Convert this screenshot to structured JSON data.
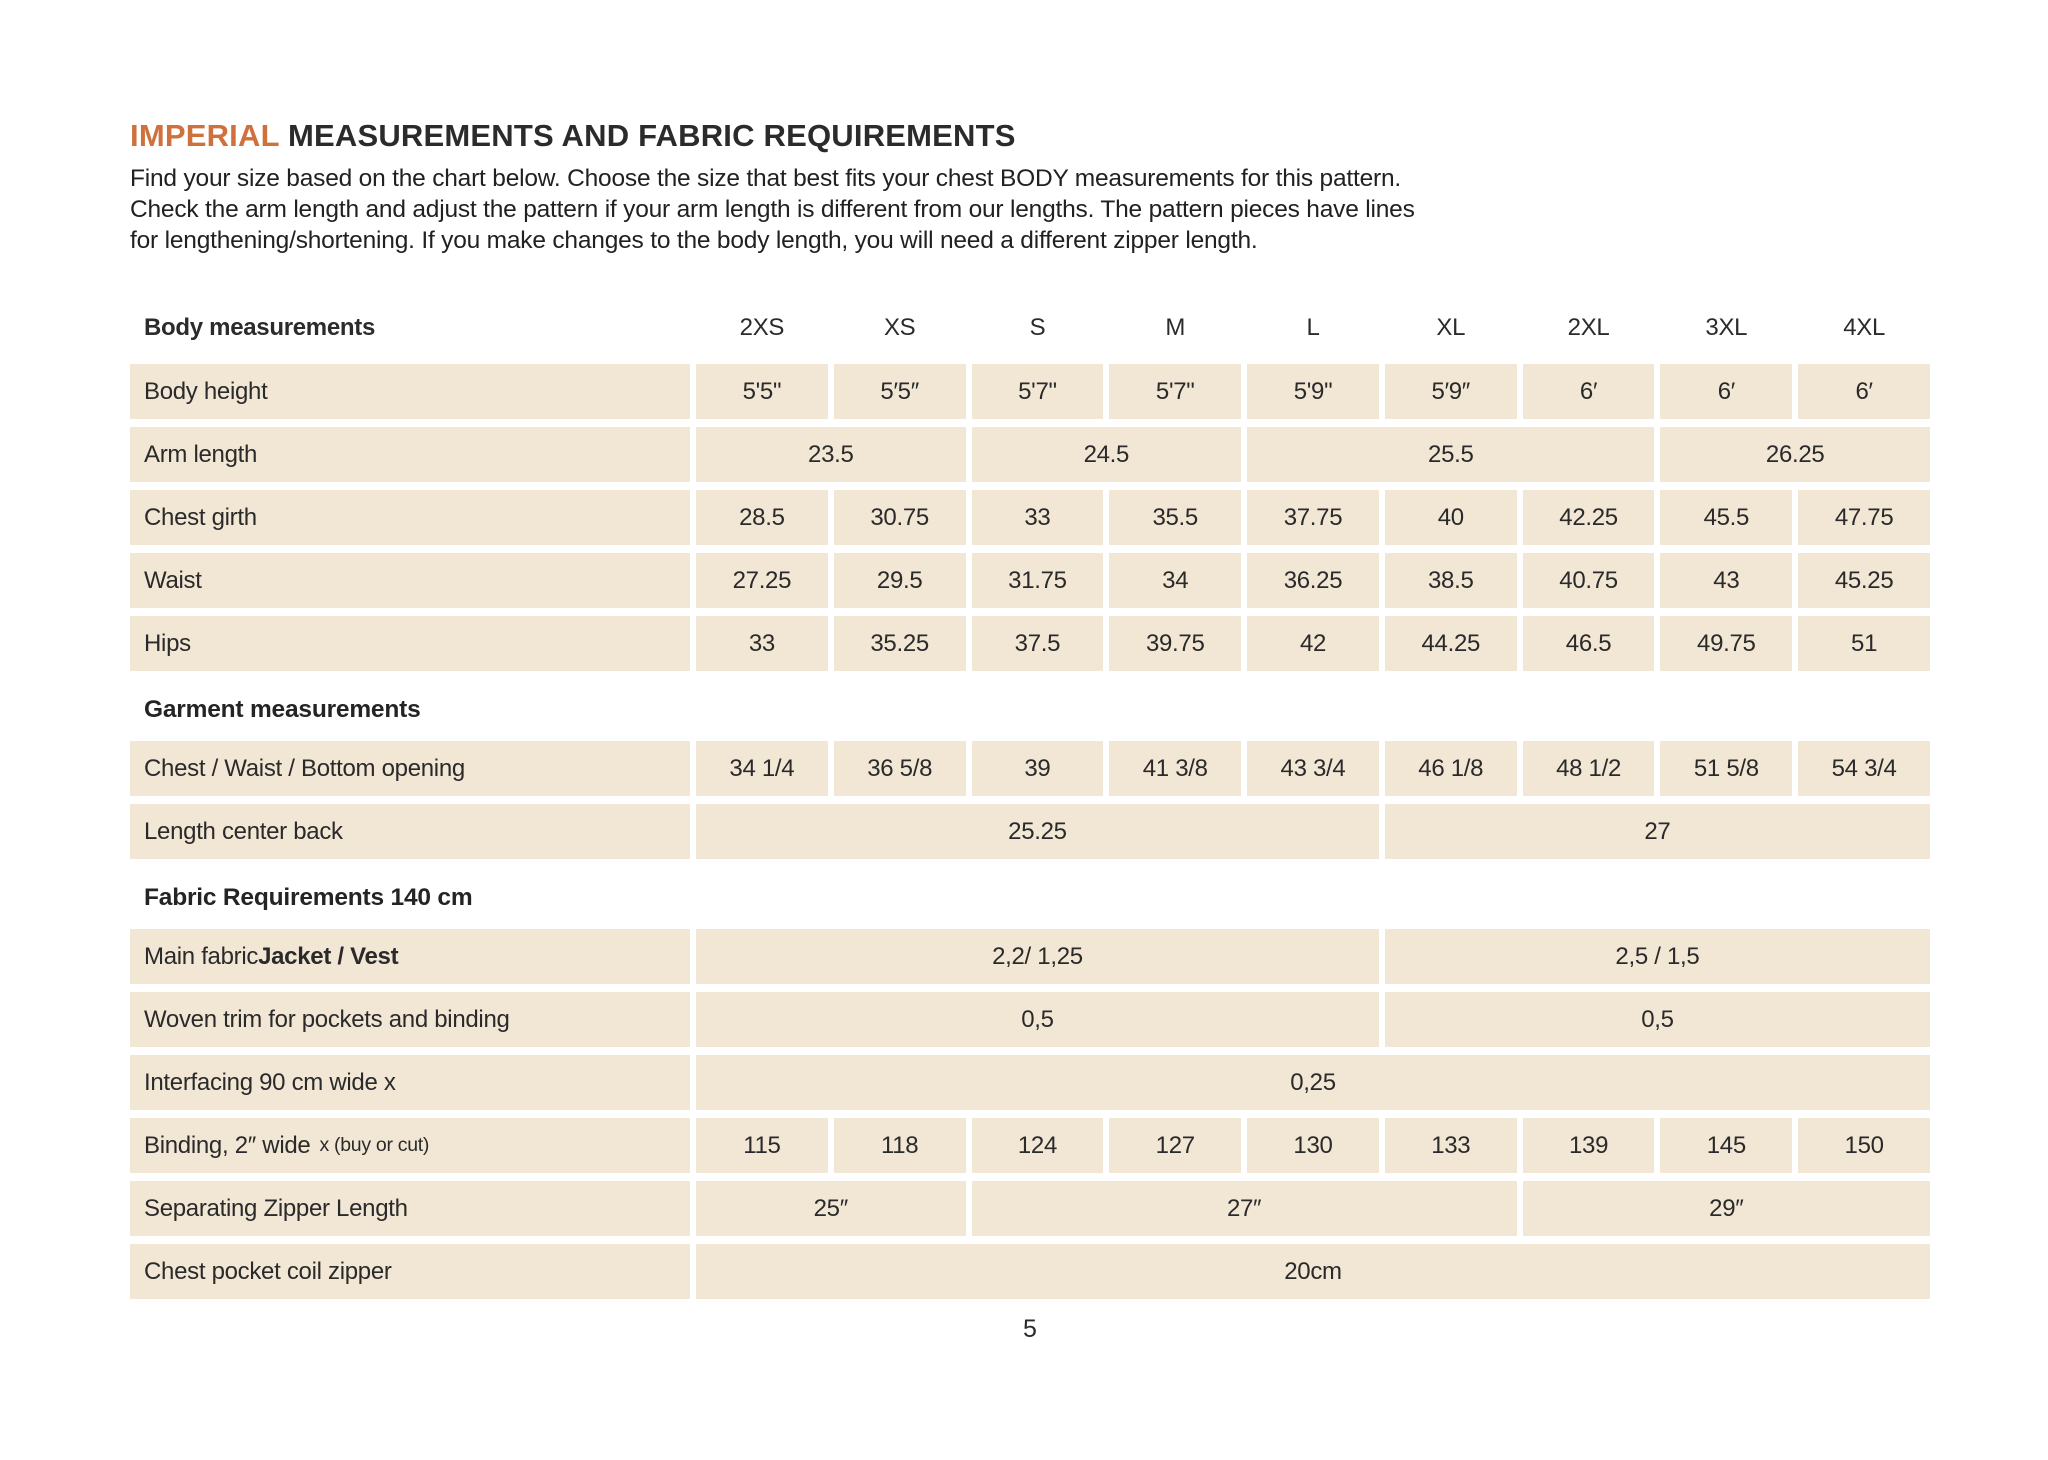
{
  "page": {
    "title": {
      "highlight": "IMPERIAL",
      "rest": " MEASUREMENTS AND FABRIC REQUIREMENTS"
    },
    "intro_lines": [
      "Find your size based on the chart below. Choose the size that best fits your chest BODY measurements for this pattern.",
      "Check the arm length and adjust the pattern if your arm length is different from our lengths. The pattern pieces have lines",
      "for lengthening/shortening. If you make changes to the body length, you will need a different zipper length."
    ],
    "page_number": "5"
  },
  "colors": {
    "accent_orange": "#D0703C",
    "cell_beige": "#F2E7D5",
    "text_dark": "#262626"
  },
  "table": {
    "header_label": "Body measurements",
    "size_columns": [
      "2XS",
      "XS",
      "S",
      "M",
      "L",
      "XL",
      "2XL",
      "3XL",
      "4XL"
    ],
    "rows": [
      {
        "kind": "data",
        "label": "Body height",
        "cells": [
          {
            "span": 1,
            "text": "5'5\""
          },
          {
            "span": 1,
            "text": "5′5″"
          },
          {
            "span": 1,
            "text": "5'7\""
          },
          {
            "span": 1,
            "text": "5'7\""
          },
          {
            "span": 1,
            "text": "5'9\""
          },
          {
            "span": 1,
            "text": "5′9″"
          },
          {
            "span": 1,
            "text": "6′"
          },
          {
            "span": 1,
            "text": "6′"
          },
          {
            "span": 1,
            "text": "6′"
          }
        ]
      },
      {
        "kind": "data",
        "label": "Arm length",
        "cells": [
          {
            "span": 2,
            "text": "23.5"
          },
          {
            "span": 2,
            "text": "24.5"
          },
          {
            "span": 3,
            "text": "25.5"
          },
          {
            "span": 2,
            "text": "26.25"
          }
        ]
      },
      {
        "kind": "data",
        "label": "Chest girth",
        "cells": [
          {
            "span": 1,
            "text": "28.5"
          },
          {
            "span": 1,
            "text": "30.75"
          },
          {
            "span": 1,
            "text": "33"
          },
          {
            "span": 1,
            "text": "35.5"
          },
          {
            "span": 1,
            "text": "37.75"
          },
          {
            "span": 1,
            "text": "40"
          },
          {
            "span": 1,
            "text": "42.25"
          },
          {
            "span": 1,
            "text": "45.5"
          },
          {
            "span": 1,
            "text": "47.75"
          }
        ]
      },
      {
        "kind": "data",
        "label": "Waist",
        "cells": [
          {
            "span": 1,
            "text": "27.25"
          },
          {
            "span": 1,
            "text": "29.5"
          },
          {
            "span": 1,
            "text": "31.75"
          },
          {
            "span": 1,
            "text": "34"
          },
          {
            "span": 1,
            "text": "36.25"
          },
          {
            "span": 1,
            "text": "38.5"
          },
          {
            "span": 1,
            "text": "40.75"
          },
          {
            "span": 1,
            "text": "43"
          },
          {
            "span": 1,
            "text": "45.25"
          }
        ]
      },
      {
        "kind": "data",
        "label": "Hips",
        "cells": [
          {
            "span": 1,
            "text": "33"
          },
          {
            "span": 1,
            "text": "35.25"
          },
          {
            "span": 1,
            "text": "37.5"
          },
          {
            "span": 1,
            "text": "39.75"
          },
          {
            "span": 1,
            "text": "42"
          },
          {
            "span": 1,
            "text": "44.25"
          },
          {
            "span": 1,
            "text": "46.5"
          },
          {
            "span": 1,
            "text": "49.75"
          },
          {
            "span": 1,
            "text": "51"
          }
        ]
      },
      {
        "kind": "section",
        "label": "Garment measurements"
      },
      {
        "kind": "data",
        "label": "Chest / Waist / Bottom opening",
        "cells": [
          {
            "span": 1,
            "text": "34 1/4"
          },
          {
            "span": 1,
            "text": "36 5/8"
          },
          {
            "span": 1,
            "text": "39"
          },
          {
            "span": 1,
            "text": "41 3/8"
          },
          {
            "span": 1,
            "text": "43 3/4"
          },
          {
            "span": 1,
            "text": "46 1/8"
          },
          {
            "span": 1,
            "text": "48 1/2"
          },
          {
            "span": 1,
            "text": "51 5/8"
          },
          {
            "span": 1,
            "text": "54 3/4"
          }
        ]
      },
      {
        "kind": "data",
        "label": "Length center back",
        "cells": [
          {
            "span": 5,
            "text": "25.25"
          },
          {
            "span": 4,
            "text": "27"
          }
        ]
      },
      {
        "kind": "section",
        "label": "Fabric Requirements 140 cm"
      },
      {
        "kind": "data",
        "label": "Main fabric ",
        "label_bold": "Jacket / Vest",
        "cells": [
          {
            "span": 5,
            "text": "2,2/ 1,25"
          },
          {
            "span": 4,
            "text": "2,5 / 1,5"
          }
        ]
      },
      {
        "kind": "data",
        "label": "Woven trim for pockets and binding",
        "cells": [
          {
            "span": 5,
            "text": "0,5"
          },
          {
            "span": 4,
            "text": "0,5"
          }
        ]
      },
      {
        "kind": "data",
        "label": "Interfacing  90 cm wide x",
        "cells": [
          {
            "span": 9,
            "text": "0,25"
          }
        ]
      },
      {
        "kind": "data",
        "label": "Binding, 2″ wide",
        "label_small": "x (buy or cut)",
        "cells": [
          {
            "span": 1,
            "text": "115"
          },
          {
            "span": 1,
            "text": "118"
          },
          {
            "span": 1,
            "text": "124"
          },
          {
            "span": 1,
            "text": "127"
          },
          {
            "span": 1,
            "text": "130"
          },
          {
            "span": 1,
            "text": "133"
          },
          {
            "span": 1,
            "text": "139"
          },
          {
            "span": 1,
            "text": "145"
          },
          {
            "span": 1,
            "text": "150"
          }
        ]
      },
      {
        "kind": "data",
        "label": "Separating Zipper Length",
        "cells": [
          {
            "span": 2,
            "text": "25″"
          },
          {
            "span": 4,
            "text": "27″"
          },
          {
            "span": 3,
            "text": "29″"
          }
        ]
      },
      {
        "kind": "data",
        "label": "Chest pocket coil zipper",
        "cells": [
          {
            "span": 9,
            "text": "20cm"
          }
        ]
      }
    ]
  }
}
